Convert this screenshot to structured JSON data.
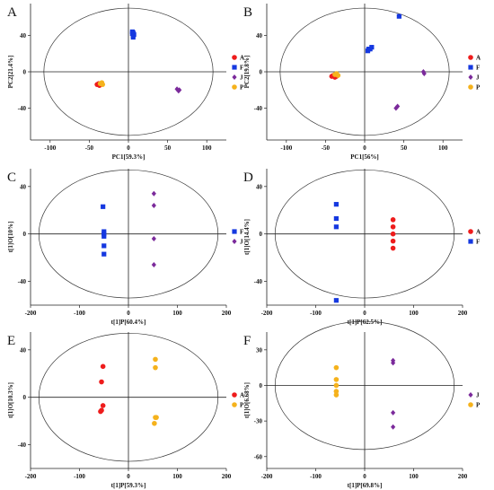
{
  "chart_data": [
    {
      "panel": "A",
      "type": "scatter",
      "xlabel": "PC1[59.3%]",
      "ylabel": "PC2[21.4%]",
      "xlim": [
        -125,
        125
      ],
      "ylim": [
        -75,
        75
      ],
      "xticks": [
        -100,
        -50,
        0,
        50,
        100
      ],
      "yticks": [
        -40,
        0,
        40
      ],
      "xticks_text": [
        "-100",
        "-50",
        "0",
        "50",
        "100"
      ],
      "yticks_text": [
        "-40",
        "0",
        "40"
      ],
      "reverse_x": false,
      "ellipse": {
        "rx": 108,
        "ry": 70
      },
      "legend_position": "right",
      "legend": [
        "A",
        "F",
        "J",
        "P"
      ],
      "series": [
        {
          "name": "A",
          "color": "#ee1c1c",
          "marker": "circle",
          "points": [
            [
              -40,
              -14
            ],
            [
              -38,
              -13
            ],
            [
              -37,
              -15
            ],
            [
              -36,
              -14
            ]
          ]
        },
        {
          "name": "F",
          "color": "#1538e0",
          "marker": "square",
          "points": [
            [
              5,
              44
            ],
            [
              5,
              42
            ],
            [
              6,
              40
            ],
            [
              6,
              38
            ],
            [
              7,
              41
            ],
            [
              6,
              43
            ]
          ]
        },
        {
          "name": "J",
          "color": "#7b2a9b",
          "marker": "diamond",
          "points": [
            [
              62,
              -19
            ],
            [
              64,
              -21
            ],
            [
              65,
              -20
            ]
          ]
        },
        {
          "name": "P",
          "color": "#f5b21c",
          "marker": "circle",
          "points": [
            [
              -36,
              -13
            ],
            [
              -34,
              -12
            ],
            [
              -33,
              -14
            ]
          ]
        }
      ]
    },
    {
      "panel": "B",
      "type": "scatter",
      "xlabel": "PC1[56%]",
      "ylabel": "PC2[19.8%]",
      "xlim": [
        -125,
        125
      ],
      "ylim": [
        -75,
        75
      ],
      "xticks": [
        -100,
        -50,
        0,
        50,
        100
      ],
      "yticks": [
        -40,
        0,
        40
      ],
      "xticks_text": [
        "-100",
        "-50",
        "0",
        "50",
        "100"
      ],
      "yticks_text": [
        "-40",
        "0",
        "40"
      ],
      "reverse_x": false,
      "ellipse": {
        "rx": 108,
        "ry": 70
      },
      "legend_position": "right",
      "legend": [
        "A",
        "F",
        "J",
        "P"
      ],
      "series": [
        {
          "name": "A",
          "color": "#ee1c1c",
          "marker": "circle",
          "points": [
            [
              -42,
              -5
            ],
            [
              -40,
              -4
            ],
            [
              -38,
              -6
            ],
            [
              -36,
              -5
            ]
          ]
        },
        {
          "name": "F",
          "color": "#1538e0",
          "marker": "square",
          "points": [
            [
              4,
              23
            ],
            [
              5,
              25
            ],
            [
              7,
              25
            ],
            [
              9,
              27
            ],
            [
              44,
              61
            ]
          ]
        },
        {
          "name": "J",
          "color": "#7b2a9b",
          "marker": "diamond",
          "points": [
            [
              75,
              0
            ],
            [
              76,
              -2
            ],
            [
              40,
              -40
            ],
            [
              42,
              -38
            ]
          ]
        },
        {
          "name": "P",
          "color": "#f5b21c",
          "marker": "circle",
          "points": [
            [
              -38,
              -3
            ],
            [
              -36,
              -2
            ],
            [
              -34,
              -4
            ]
          ]
        }
      ]
    },
    {
      "panel": "C",
      "type": "scatter",
      "xlabel": "t[1]P[60.4%]",
      "ylabel": "t[1]O[10%]",
      "xlim": [
        -200,
        200
      ],
      "ylim": [
        -60,
        55
      ],
      "xticks": [
        -200,
        -100,
        0,
        100,
        200
      ],
      "yticks": [
        -40,
        0,
        40
      ],
      "xticks_text": [
        "-200",
        "-100",
        "0",
        "100",
        "200"
      ],
      "yticks_text": [
        "-40",
        "0",
        "40"
      ],
      "reverse_x": false,
      "ellipse": {
        "rx": 183,
        "ry": 54
      },
      "legend_position": "right",
      "legend": [
        "F",
        "J"
      ],
      "series": [
        {
          "name": "F",
          "color": "#1538e0",
          "marker": "square",
          "points": [
            [
              -52,
              23
            ],
            [
              -50,
              2
            ],
            [
              -50,
              -2
            ],
            [
              -50,
              -10
            ],
            [
              -50,
              -17
            ],
            [
              -50,
              0
            ]
          ]
        },
        {
          "name": "J",
          "color": "#7b2a9b",
          "marker": "diamond",
          "points": [
            [
              52,
              34
            ],
            [
              52,
              24
            ],
            [
              52,
              -4
            ],
            [
              52,
              -26
            ]
          ]
        }
      ]
    },
    {
      "panel": "D",
      "type": "scatter",
      "xlabel": "t[1]P[62.5%]",
      "ylabel": "t[1]O[14.4%]",
      "xlim": [
        -200,
        200
      ],
      "ylim": [
        -60,
        55
      ],
      "xticks": [
        -200,
        -100,
        0,
        100,
        200
      ],
      "yticks": [
        -40,
        0,
        40
      ],
      "xticks_text": [
        "200",
        "100",
        "0",
        "-100",
        "-200"
      ],
      "yticks_text": [
        "-40",
        "0",
        "40"
      ],
      "reverse_x": true,
      "ellipse": {
        "rx": 183,
        "ry": 54
      },
      "legend_position": "right",
      "legend": [
        "A",
        "F"
      ],
      "series": [
        {
          "name": "A",
          "color": "#ee1c1c",
          "marker": "circle",
          "points": [
            [
              -58,
              12
            ],
            [
              -58,
              6
            ],
            [
              -58,
              0
            ],
            [
              -58,
              -6
            ],
            [
              -58,
              -12
            ]
          ]
        },
        {
          "name": "F",
          "color": "#1538e0",
          "marker": "square",
          "points": [
            [
              58,
              25
            ],
            [
              58,
              13
            ],
            [
              58,
              6
            ],
            [
              58,
              -56
            ]
          ]
        }
      ]
    },
    {
      "panel": "E",
      "type": "scatter",
      "xlabel": "t[1]P[59.3%]",
      "ylabel": "t[1]O[10.3%]",
      "xlim": [
        -200,
        200
      ],
      "ylim": [
        -60,
        55
      ],
      "xticks": [
        -200,
        -100,
        0,
        100,
        200
      ],
      "yticks": [
        -40,
        0,
        40
      ],
      "xticks_text": [
        "-200",
        "-100",
        "0",
        "100",
        "200"
      ],
      "yticks_text": [
        "-40",
        "0",
        "40"
      ],
      "reverse_x": false,
      "ellipse": {
        "rx": 183,
        "ry": 54
      },
      "legend_position": "right",
      "legend": [
        "A",
        "P"
      ],
      "series": [
        {
          "name": "A",
          "color": "#ee1c1c",
          "marker": "circle",
          "points": [
            [
              -52,
              26
            ],
            [
              -55,
              13
            ],
            [
              -52,
              -7
            ],
            [
              -55,
              -11
            ],
            [
              -57,
              -12
            ]
          ]
        },
        {
          "name": "P",
          "color": "#f5b21c",
          "marker": "circle",
          "points": [
            [
              55,
              32
            ],
            [
              55,
              25
            ],
            [
              55,
              -17
            ],
            [
              57,
              -17
            ],
            [
              53,
              -22
            ]
          ]
        }
      ]
    },
    {
      "panel": "F",
      "type": "scatter",
      "xlabel": "t[1]P[69.8%]",
      "ylabel": "t[1]O[6.68%]",
      "xlim": [
        -200,
        200
      ],
      "ylim": [
        -70,
        45
      ],
      "xticks": [
        -200,
        -100,
        0,
        100,
        200
      ],
      "yticks": [
        -60,
        -30,
        0,
        30
      ],
      "xticks_text": [
        "200",
        "100",
        "0",
        "-100",
        "-200"
      ],
      "yticks_text": [
        "-60",
        "-30",
        "0",
        "30"
      ],
      "reverse_x": true,
      "ellipse": {
        "rx": 183,
        "ry": 54
      },
      "legend_position": "right",
      "legend": [
        "J",
        "P"
      ],
      "series": [
        {
          "name": "J",
          "color": "#7b2a9b",
          "marker": "diamond",
          "points": [
            [
              -58,
              21
            ],
            [
              -58,
              19
            ],
            [
              -58,
              -23
            ],
            [
              -58,
              -35
            ]
          ]
        },
        {
          "name": "P",
          "color": "#f5b21c",
          "marker": "circle",
          "points": [
            [
              58,
              15
            ],
            [
              58,
              5
            ],
            [
              58,
              0
            ],
            [
              58,
              -5
            ],
            [
              58,
              -8
            ]
          ]
        }
      ]
    }
  ]
}
